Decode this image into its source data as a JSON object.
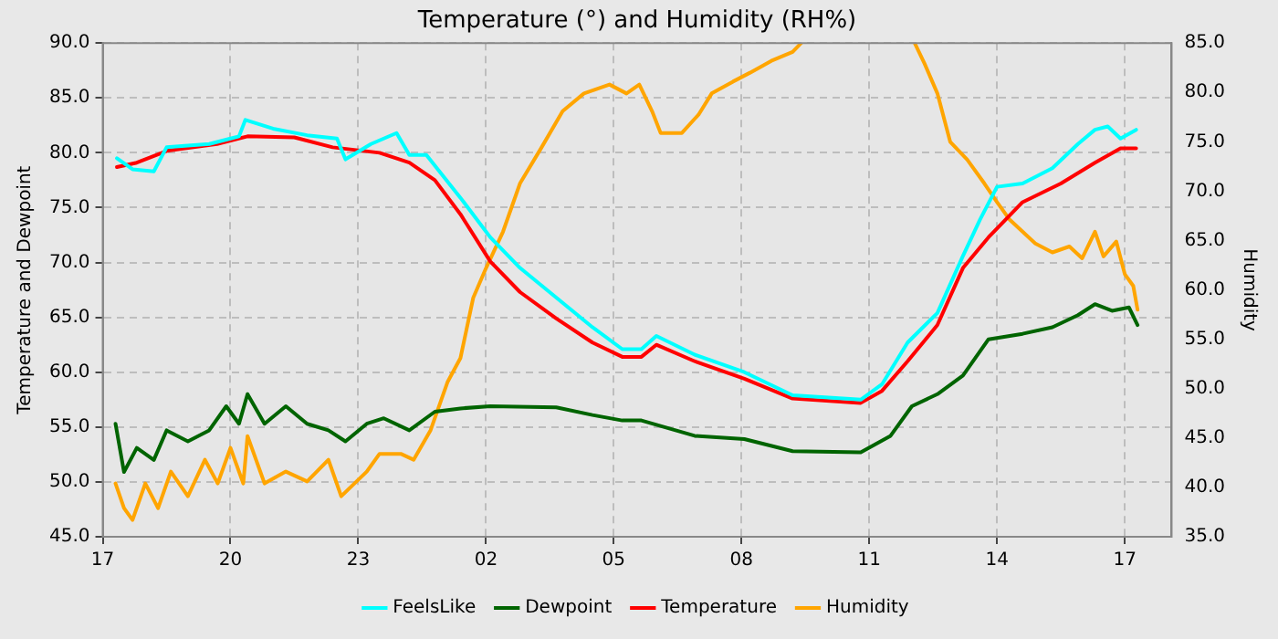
{
  "chart_data": {
    "type": "line",
    "title": "Temperature (°) and Humidity (RH%)",
    "ylabel": "Temperature and Dewpoint",
    "y2label": "Humidity",
    "xlim": [
      "--01-01T17:00",
      "--01-02T18:06"
    ],
    "xticks": [
      {
        "value": "--01-01T17:00",
        "label": "17"
      },
      {
        "value": "--01-01T20:00",
        "label": "20"
      },
      {
        "value": "--01-01T23:00",
        "label": "23"
      },
      {
        "value": "--01-02T02:00",
        "label": "02"
      },
      {
        "value": "--01-02T05:00",
        "label": "05"
      },
      {
        "value": "--01-02T08:00",
        "label": "08"
      },
      {
        "value": "--01-02T11:00",
        "label": "11"
      },
      {
        "value": "--01-02T14:00",
        "label": "14"
      },
      {
        "value": "--01-02T17:00",
        "label": "17"
      }
    ],
    "ylim": [
      45,
      90
    ],
    "yticks": [
      {
        "value": 45,
        "label": "45.0"
      },
      {
        "value": 50,
        "label": "50.0"
      },
      {
        "value": 55,
        "label": "55.0"
      },
      {
        "value": 60,
        "label": "60.0"
      },
      {
        "value": 65,
        "label": "65.0"
      },
      {
        "value": 70,
        "label": "70.0"
      },
      {
        "value": 75,
        "label": "75.0"
      },
      {
        "value": 80,
        "label": "80.0"
      },
      {
        "value": 85,
        "label": "85.0"
      },
      {
        "value": 90,
        "label": "90.0"
      }
    ],
    "y2lim": [
      35,
      85
    ],
    "y2ticks": [
      {
        "value": 35,
        "label": "35.0"
      },
      {
        "value": 40,
        "label": "40.0"
      },
      {
        "value": 45,
        "label": "45.0"
      },
      {
        "value": 50,
        "label": "50.0"
      },
      {
        "value": 55,
        "label": "55.0"
      },
      {
        "value": 60,
        "label": "60.0"
      },
      {
        "value": 65,
        "label": "65.0"
      },
      {
        "value": 70,
        "label": "70.0"
      },
      {
        "value": 75,
        "label": "75.0"
      },
      {
        "value": 80,
        "label": "80.0"
      },
      {
        "value": 85,
        "label": "85.0"
      }
    ],
    "grid": true,
    "legend": "bottom",
    "marker": "none",
    "line_style": "solid",
    "series": [
      {
        "name": "FeelsLike",
        "color": "#00ffff",
        "x": [
          "--01-01T17:20",
          "--01-01T17:42",
          "--01-01T18:12",
          "--01-01T18:30",
          "--01-01T19:30",
          "--01-01T20:12",
          "--01-01T20:21",
          "--01-01T21:00",
          "--01-01T21:48",
          "--01-01T22:30",
          "--01-01T22:42",
          "--01-01T23:18",
          "--01-01T23:54",
          "--01-02T00:12",
          "--01-02T00:36",
          "--01-02T01:24",
          "--01-02T02:06",
          "--01-02T02:48",
          "--01-02T03:39",
          "--01-02T04:30",
          "--01-02T05:12",
          "--01-02T05:39",
          "--01-02T06:00",
          "--01-02T06:54",
          "--01-02T08:04",
          "--01-02T09:12",
          "--01-02T10:48",
          "--01-02T11:18",
          "--01-02T11:54",
          "--01-02T12:36",
          "--01-02T13:12",
          "--01-02T13:36",
          "--01-02T14:00",
          "--01-02T14:36",
          "--01-02T15:18",
          "--01-02T15:54",
          "--01-02T16:18",
          "--01-02T16:36",
          "--01-02T16:54",
          "--01-02T17:16"
        ],
        "values": [
          79.5,
          78.5,
          78.3,
          80.5,
          80.8,
          81.5,
          83.0,
          82.2,
          81.6,
          81.3,
          79.4,
          80.8,
          81.8,
          79.8,
          79.8,
          75.9,
          72.3,
          69.5,
          66.8,
          64.1,
          62.1,
          62.1,
          63.3,
          61.6,
          60.0,
          57.9,
          57.5,
          58.9,
          62.7,
          65.4,
          70.6,
          73.9,
          76.9,
          77.2,
          78.6,
          80.8,
          82.1,
          82.4,
          81.3,
          82.1
        ]
      },
      {
        "name": "Dewpoint",
        "color": "#006400",
        "x": [
          "--01-01T17:18",
          "--01-01T17:30",
          "--01-01T17:48",
          "--01-01T18:12",
          "--01-01T18:30",
          "--01-01T19:00",
          "--01-01T19:30",
          "--01-01T19:54",
          "--01-01T20:12",
          "--01-01T20:24",
          "--01-01T20:48",
          "--01-01T21:18",
          "--01-01T21:48",
          "--01-01T22:18",
          "--01-01T22:42",
          "--01-01T23:12",
          "--01-01T23:36",
          "--01-02T00:12",
          "--01-02T00:48",
          "--01-02T01:24",
          "--01-02T02:06",
          "--01-02T03:39",
          "--01-02T04:30",
          "--01-02T05:12",
          "--01-02T05:39",
          "--01-02T06:54",
          "--01-02T08:04",
          "--01-02T09:12",
          "--01-02T10:48",
          "--01-02T11:30",
          "--01-02T12:00",
          "--01-02T12:36",
          "--01-02T13:12",
          "--01-02T13:48",
          "--01-02T14:36",
          "--01-02T15:18",
          "--01-02T15:54",
          "--01-02T16:18",
          "--01-02T16:42",
          "--01-02T17:06",
          "--01-02T17:18"
        ],
        "values": [
          55.3,
          50.9,
          53.1,
          52.0,
          54.7,
          53.7,
          54.7,
          56.9,
          55.3,
          58.0,
          55.3,
          56.9,
          55.3,
          54.7,
          53.7,
          55.3,
          55.8,
          54.7,
          56.4,
          56.7,
          56.9,
          56.8,
          56.1,
          55.6,
          55.6,
          54.2,
          53.9,
          52.8,
          52.7,
          54.2,
          56.9,
          58.0,
          59.7,
          63.0,
          63.5,
          64.1,
          65.2,
          66.2,
          65.6,
          65.9,
          64.3
        ]
      },
      {
        "name": "Temperature",
        "color": "#ff0000",
        "x": [
          "--01-01T17:20",
          "--01-01T17:48",
          "--01-01T18:32",
          "--01-01T19:41",
          "--01-01T20:24",
          "--01-01T21:30",
          "--01-01T22:24",
          "--01-01T23:30",
          "--01-02T00:12",
          "--01-02T00:48",
          "--01-02T01:24",
          "--01-02T02:06",
          "--01-02T02:48",
          "--01-02T03:39",
          "--01-02T04:30",
          "--01-02T05:12",
          "--01-02T05:39",
          "--01-02T06:00",
          "--01-02T06:54",
          "--01-02T08:04",
          "--01-02T09:12",
          "--01-02T10:48",
          "--01-02T11:18",
          "--01-02T11:54",
          "--01-02T12:36",
          "--01-02T13:12",
          "--01-02T13:48",
          "--01-02T14:36",
          "--01-02T15:30",
          "--01-02T16:18",
          "--01-02T16:54",
          "--01-02T17:16"
        ],
        "values": [
          78.7,
          79.1,
          80.2,
          80.8,
          81.5,
          81.4,
          80.5,
          80.0,
          79.1,
          77.5,
          74.4,
          70.1,
          67.3,
          64.9,
          62.7,
          61.4,
          61.4,
          62.5,
          61.0,
          59.4,
          57.6,
          57.2,
          58.3,
          61.0,
          64.3,
          69.5,
          72.3,
          75.5,
          77.2,
          79.1,
          80.4,
          80.4
        ]
      },
      {
        "name": "Humidity",
        "color": "#ffa500",
        "axis": "y2",
        "x": [
          "--01-01T17:18",
          "--01-01T17:30",
          "--01-01T17:42",
          "--01-01T18:00",
          "--01-01T18:18",
          "--01-01T18:36",
          "--01-01T19:00",
          "--01-01T19:24",
          "--01-01T19:42",
          "--01-01T20:00",
          "--01-01T20:18",
          "--01-01T20:24",
          "--01-01T20:48",
          "--01-01T21:18",
          "--01-01T21:48",
          "--01-01T22:18",
          "--01-01T22:36",
          "--01-01T23:12",
          "--01-01T23:30",
          "--01-02T00:00",
          "--01-02T00:18",
          "--01-02T00:42",
          "--01-02T01:06",
          "--01-02T01:24",
          "--01-02T01:42",
          "--01-02T02:00",
          "--01-02T02:24",
          "--01-02T02:48",
          "--01-02T03:18",
          "--01-02T03:48",
          "--01-02T04:18",
          "--01-02T04:54",
          "--01-02T05:18",
          "--01-02T05:36",
          "--01-02T05:54",
          "--01-02T06:06",
          "--01-02T06:36",
          "--01-02T07:00",
          "--01-02T07:18",
          "--01-02T07:48",
          "--01-02T08:12",
          "--01-02T08:42",
          "--01-02T09:12",
          "--01-02T09:24",
          "--01-02T10:42",
          "--01-02T12:04",
          "--01-02T12:18",
          "--01-02T12:36",
          "--01-02T12:54",
          "--01-02T13:18",
          "--01-02T13:42",
          "--01-02T14:00",
          "--01-02T14:18",
          "--01-02T14:36",
          "--01-02T14:54",
          "--01-02T15:18",
          "--01-02T15:42",
          "--01-02T16:00",
          "--01-02T16:18",
          "--01-02T16:30",
          "--01-02T16:48",
          "--01-02T17:00",
          "--01-02T17:12",
          "--01-02T17:18"
        ],
        "values": [
          40.4,
          37.9,
          36.7,
          40.4,
          37.9,
          41.6,
          39.1,
          42.8,
          40.4,
          44.0,
          40.4,
          45.2,
          40.4,
          41.6,
          40.6,
          42.8,
          39.1,
          41.6,
          43.4,
          43.4,
          42.8,
          45.8,
          50.7,
          53.1,
          59.2,
          62.2,
          65.9,
          70.8,
          74.4,
          78.1,
          79.9,
          80.8,
          79.9,
          80.8,
          78.1,
          75.9,
          75.9,
          77.8,
          79.9,
          81.1,
          82.0,
          83.2,
          84.1,
          85,
          null,
          85,
          82.9,
          79.9,
          75.0,
          73.2,
          70.8,
          68.9,
          67.1,
          65.9,
          64.7,
          63.8,
          64.4,
          63.2,
          65.9,
          63.4,
          64.9,
          61.6,
          60.4,
          58.0
        ]
      }
    ]
  }
}
